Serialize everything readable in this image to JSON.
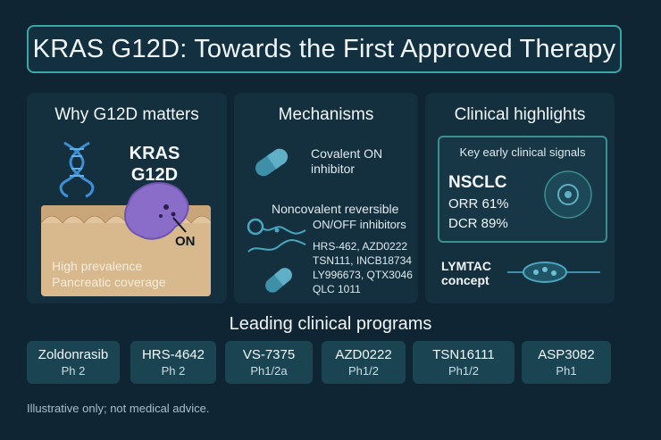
{
  "title": "KRAS G12D: Towards the First Approved Therapy",
  "why": {
    "heading": "Why G12D matters",
    "kras_line1": "KRAS",
    "kras_line2": "G12D",
    "on_label": "ON",
    "point1": "High prevalence",
    "point2": "Pancreatic coverage",
    "icons": [
      "dna-icon",
      "kras-protein-icon",
      "cell-membrane-icon"
    ]
  },
  "mechanisms": {
    "heading": "Mechanisms",
    "covalent_line1": "Covalent ON",
    "covalent_line2": "inhibitor",
    "noncov_line1": "Noncovalent reversible",
    "noncov_line2": "ON/OFF inhibitors",
    "compounds": [
      "HRS-462, AZD0222",
      "TSN111, INCB18734",
      "LY996673, QTX3046",
      "QLC 1011"
    ],
    "icons": [
      "capsule-icon",
      "molecule-icon",
      "capsule-icon"
    ]
  },
  "clinical": {
    "heading": "Clinical highlights",
    "signals_title": "Key early clinical signals",
    "indication": "NSCLC",
    "orr": "ORR 61%",
    "dcr": "DCR 89%",
    "lymtac_line1": "LYMTAC",
    "lymtac_line2": "concept",
    "icons": [
      "target-icon",
      "lysosome-icon"
    ]
  },
  "programs": {
    "title": "Leading clinical programs",
    "items": [
      {
        "name": "Zoldonrasib",
        "phase": "Ph 2"
      },
      {
        "name": "HRS-4642",
        "phase": "Ph 2"
      },
      {
        "name": "VS-7375",
        "phase": "Ph1/2a"
      },
      {
        "name": "AZD0222",
        "phase": "Ph1/2"
      },
      {
        "name": "TSN16111",
        "phase": "Ph1/2"
      },
      {
        "name": "ASP3082",
        "phase": "Ph1"
      }
    ]
  },
  "footer": "Illustrative only; not medical advice.",
  "colors": {
    "background": "#0f2533",
    "panel": "#14303f",
    "accent": "#3aa6a6",
    "dna": "#3d8fd6",
    "protein": "#8a6cc9",
    "capsule": "#3e8fa8",
    "tissue": "#d8b98e"
  }
}
